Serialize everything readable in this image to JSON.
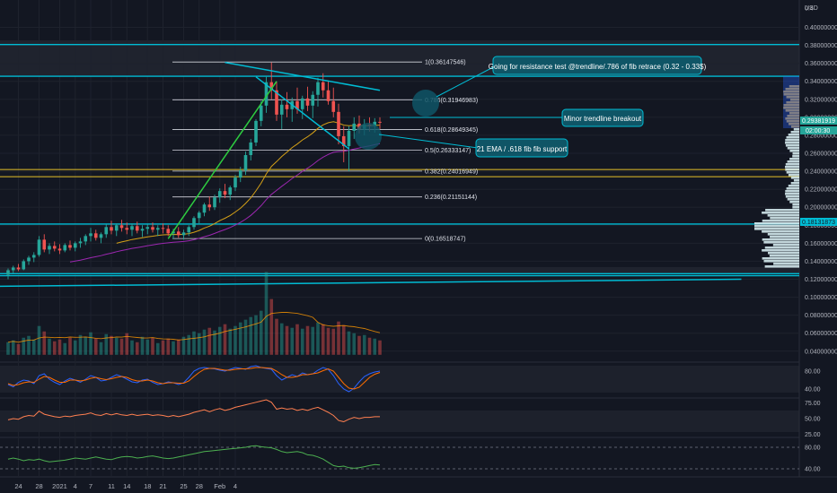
{
  "theme": {
    "background": "#131722",
    "axis_text": "#b2b5be",
    "grid": "#1e222d",
    "bull": "#26a69a",
    "bear": "#ef5350",
    "accent": "#00bcd4",
    "ema_line": "#d4a017",
    "slow_ma": "#9c27b0",
    "trend_green": "#2ecc40",
    "fib_line": "#d1d4dc",
    "fib_band": "#e6c229",
    "zone_fill": "#2a2e39"
  },
  "axis": {
    "currency_label": "USD",
    "price_ticks": [
      "0.4",
      "0.40000000",
      "0.38000000",
      "0.36000000",
      "0.34000000",
      "0.32000000",
      "0.30000000",
      "0.28000000",
      "0.26000000",
      "0.24000000",
      "0.22000000",
      "0.20000000",
      "0.18000000",
      "0.16000000",
      "0.14000000",
      "0.12000000",
      "0.10000000",
      "0.08000000",
      "0.06000000",
      "0.04000000"
    ],
    "date_ticks": [
      "24",
      "28",
      "2021",
      "4",
      "7",
      "11",
      "14",
      "18",
      "21",
      "25",
      "28",
      "Feb",
      "4"
    ]
  },
  "price_tags": {
    "last_price": "0.29381919",
    "countdown": "02:00:30",
    "level_tag": "0.18131873"
  },
  "fib_levels": [
    {
      "label": "1(0.36147546)"
    },
    {
      "label": "0.786(0.31946983)"
    },
    {
      "label": "0.618(0.28649345)"
    },
    {
      "label": "0.5(0.26333147)"
    },
    {
      "label": "0.382(0.24016949)"
    },
    {
      "label": "0.236(0.21151144)"
    },
    {
      "label": "0(0.16518747)"
    }
  ],
  "annotations": {
    "resistance": "Going for resistance test @trendline/.786 of fib retrace (0.32 - 0.33$)",
    "breakout": "Minor trendline breakout",
    "support": "21 EMA / .618 fib fib support"
  },
  "indicators": {
    "stoch_ticks": [
      "80.00",
      "40.00"
    ],
    "rsi_ticks": [
      "75.00",
      "50.00",
      "25.00"
    ],
    "third_ticks": [
      "80.00",
      "40.00"
    ]
  },
  "chart_data": {
    "type": "candlestick",
    "title": "",
    "y_scale": "price (USD)",
    "x_start": "2020-12-22",
    "price_ylim": [
      0.12,
      0.4
    ],
    "candles": [
      [
        0.125,
        0.132,
        0.12,
        0.13
      ],
      [
        0.13,
        0.135,
        0.127,
        0.133
      ],
      [
        0.133,
        0.137,
        0.129,
        0.131
      ],
      [
        0.131,
        0.142,
        0.13,
        0.14
      ],
      [
        0.14,
        0.146,
        0.136,
        0.144
      ],
      [
        0.144,
        0.15,
        0.139,
        0.147
      ],
      [
        0.147,
        0.168,
        0.145,
        0.164
      ],
      [
        0.164,
        0.17,
        0.15,
        0.153
      ],
      [
        0.153,
        0.16,
        0.148,
        0.157
      ],
      [
        0.157,
        0.162,
        0.151,
        0.154
      ],
      [
        0.154,
        0.159,
        0.148,
        0.152
      ],
      [
        0.152,
        0.16,
        0.15,
        0.158
      ],
      [
        0.158,
        0.163,
        0.152,
        0.155
      ],
      [
        0.155,
        0.162,
        0.151,
        0.16
      ],
      [
        0.16,
        0.166,
        0.155,
        0.162
      ],
      [
        0.162,
        0.17,
        0.158,
        0.168
      ],
      [
        0.168,
        0.177,
        0.162,
        0.171
      ],
      [
        0.171,
        0.175,
        0.163,
        0.166
      ],
      [
        0.166,
        0.172,
        0.16,
        0.17
      ],
      [
        0.17,
        0.181,
        0.166,
        0.178
      ],
      [
        0.178,
        0.185,
        0.17,
        0.174
      ],
      [
        0.174,
        0.182,
        0.168,
        0.18
      ],
      [
        0.18,
        0.186,
        0.173,
        0.177
      ],
      [
        0.177,
        0.183,
        0.17,
        0.175
      ],
      [
        0.175,
        0.182,
        0.168,
        0.179
      ],
      [
        0.179,
        0.184,
        0.171,
        0.174
      ],
      [
        0.174,
        0.18,
        0.167,
        0.176
      ],
      [
        0.176,
        0.181,
        0.17,
        0.178
      ],
      [
        0.178,
        0.183,
        0.172,
        0.175
      ],
      [
        0.175,
        0.18,
        0.168,
        0.177
      ],
      [
        0.177,
        0.182,
        0.171,
        0.176
      ],
      [
        0.176,
        0.18,
        0.168,
        0.171
      ],
      [
        0.171,
        0.176,
        0.165,
        0.173
      ],
      [
        0.173,
        0.178,
        0.166,
        0.169
      ],
      [
        0.169,
        0.175,
        0.164,
        0.172
      ],
      [
        0.172,
        0.18,
        0.168,
        0.178
      ],
      [
        0.178,
        0.19,
        0.175,
        0.188
      ],
      [
        0.188,
        0.196,
        0.182,
        0.194
      ],
      [
        0.194,
        0.205,
        0.19,
        0.203
      ],
      [
        0.203,
        0.212,
        0.196,
        0.2
      ],
      [
        0.2,
        0.214,
        0.197,
        0.211
      ],
      [
        0.211,
        0.221,
        0.205,
        0.218
      ],
      [
        0.218,
        0.226,
        0.21,
        0.214
      ],
      [
        0.214,
        0.224,
        0.208,
        0.222
      ],
      [
        0.222,
        0.236,
        0.218,
        0.233
      ],
      [
        0.233,
        0.245,
        0.228,
        0.241
      ],
      [
        0.241,
        0.262,
        0.236,
        0.258
      ],
      [
        0.258,
        0.276,
        0.252,
        0.272
      ],
      [
        0.272,
        0.298,
        0.268,
        0.296
      ],
      [
        0.296,
        0.318,
        0.29,
        0.313
      ],
      [
        0.313,
        0.345,
        0.305,
        0.339
      ],
      [
        0.339,
        0.361,
        0.32,
        0.33
      ],
      [
        0.33,
        0.34,
        0.296,
        0.303
      ],
      [
        0.303,
        0.32,
        0.287,
        0.314
      ],
      [
        0.314,
        0.328,
        0.3,
        0.309
      ],
      [
        0.309,
        0.322,
        0.295,
        0.318
      ],
      [
        0.318,
        0.333,
        0.304,
        0.309
      ],
      [
        0.309,
        0.324,
        0.298,
        0.321
      ],
      [
        0.321,
        0.334,
        0.307,
        0.313
      ],
      [
        0.313,
        0.329,
        0.299,
        0.325
      ],
      [
        0.325,
        0.344,
        0.312,
        0.339
      ],
      [
        0.339,
        0.349,
        0.322,
        0.33
      ],
      [
        0.33,
        0.341,
        0.314,
        0.318
      ],
      [
        0.318,
        0.333,
        0.3,
        0.306
      ],
      [
        0.306,
        0.315,
        0.27,
        0.279
      ],
      [
        0.279,
        0.29,
        0.25,
        0.268
      ],
      [
        0.268,
        0.29,
        0.24,
        0.285
      ],
      [
        0.285,
        0.3,
        0.276,
        0.293
      ],
      [
        0.293,
        0.302,
        0.282,
        0.287
      ],
      [
        0.287,
        0.298,
        0.28,
        0.292
      ],
      [
        0.292,
        0.3,
        0.284,
        0.29
      ],
      [
        0.29,
        0.299,
        0.283,
        0.295
      ],
      [
        0.295,
        0.3,
        0.287,
        0.294
      ]
    ],
    "fib_values": [
      0.36147546,
      0.31946983,
      0.28649345,
      0.26333147,
      0.24016949,
      0.21151144,
      0.16518747
    ],
    "horizontal_levels": [
      0.3809,
      0.3456,
      0.1813,
      0.1262,
      0.1239
    ],
    "fib_band": [
      0.234,
      0.242
    ],
    "ema21_from_day": 21,
    "slow_ma_from_day": 12,
    "trendlines": [
      {
        "name": "descending resistance",
        "from": [
          42,
          0.361
        ],
        "to": [
          72,
          0.33
        ]
      },
      {
        "name": "break line",
        "from": [
          48,
          0.345
        ],
        "to": [
          66,
          0.265
        ]
      },
      {
        "name": "rising support",
        "from": [
          31,
          0.165
        ],
        "to": [
          52,
          0.34
        ]
      },
      {
        "name": "lower channel",
        "from": [
          -4,
          0.112
        ],
        "to": [
          142,
          0.12
        ]
      }
    ],
    "volume_ylim": [
      0.04,
      0.13
    ],
    "volume": [
      0.05,
      0.052,
      0.048,
      0.055,
      0.057,
      0.053,
      0.068,
      0.062,
      0.054,
      0.051,
      0.053,
      0.049,
      0.055,
      0.052,
      0.058,
      0.056,
      0.061,
      0.054,
      0.05,
      0.059,
      0.057,
      0.055,
      0.054,
      0.06,
      0.052,
      0.05,
      0.056,
      0.053,
      0.055,
      0.049,
      0.052,
      0.054,
      0.051,
      0.053,
      0.056,
      0.058,
      0.062,
      0.06,
      0.064,
      0.066,
      0.063,
      0.067,
      0.07,
      0.065,
      0.068,
      0.072,
      0.075,
      0.078,
      0.08,
      0.085,
      0.128,
      0.098,
      0.076,
      0.071,
      0.068,
      0.066,
      0.07,
      0.065,
      0.068,
      0.067,
      0.072,
      0.07,
      0.066,
      0.065,
      0.073,
      0.069,
      0.062,
      0.06,
      0.057,
      0.058,
      0.055,
      0.054,
      0.052
    ],
    "stoch_ylim": [
      20,
      100
    ],
    "stoch_k": [
      50,
      45,
      55,
      60,
      58,
      52,
      70,
      74,
      62,
      55,
      50,
      58,
      64,
      60,
      55,
      62,
      70,
      66,
      58,
      60,
      66,
      72,
      68,
      62,
      56,
      54,
      60,
      62,
      55,
      50,
      52,
      56,
      54,
      50,
      54,
      66,
      80,
      86,
      88,
      86,
      85,
      82,
      80,
      84,
      88,
      86,
      84,
      90,
      92,
      88,
      86,
      84,
      70,
      60,
      66,
      72,
      68,
      76,
      72,
      74,
      82,
      88,
      84,
      70,
      52,
      40,
      34,
      42,
      56,
      68,
      74,
      78,
      80
    ],
    "stoch_d": [
      52,
      48,
      50,
      54,
      56,
      55,
      62,
      68,
      66,
      60,
      55,
      55,
      60,
      60,
      58,
      60,
      64,
      66,
      63,
      61,
      63,
      66,
      68,
      66,
      61,
      58,
      58,
      60,
      58,
      54,
      52,
      54,
      54,
      53,
      53,
      58,
      68,
      77,
      84,
      86,
      86,
      84,
      82,
      82,
      84,
      85,
      85,
      86,
      88,
      88,
      87,
      86,
      80,
      72,
      66,
      66,
      68,
      72,
      72,
      74,
      76,
      81,
      85,
      80,
      66,
      52,
      42,
      40,
      44,
      55,
      66,
      73,
      77
    ],
    "rsi_ylim": [
      20,
      80
    ],
    "rsi": [
      48,
      50,
      49,
      53,
      55,
      54,
      62,
      57,
      55,
      53,
      52,
      54,
      53,
      55,
      56,
      57,
      59,
      56,
      55,
      58,
      56,
      58,
      56,
      55,
      57,
      55,
      56,
      57,
      55,
      56,
      55,
      53,
      55,
      53,
      55,
      57,
      60,
      62,
      64,
      61,
      64,
      66,
      63,
      65,
      68,
      70,
      72,
      74,
      76,
      78,
      80,
      76,
      65,
      67,
      65,
      66,
      63,
      65,
      63,
      66,
      68,
      64,
      60,
      55,
      47,
      45,
      49,
      52,
      50,
      52,
      52,
      53,
      53
    ],
    "third_ylim": [
      25,
      95
    ],
    "third": [
      58,
      60,
      58,
      55,
      57,
      56,
      58,
      55,
      53,
      54,
      55,
      56,
      58,
      60,
      59,
      58,
      60,
      62,
      60,
      58,
      57,
      60,
      62,
      63,
      62,
      60,
      61,
      63,
      64,
      62,
      60,
      59,
      60,
      62,
      64,
      66,
      68,
      70,
      72,
      73,
      74,
      75,
      76,
      77,
      78,
      79,
      80,
      82,
      83,
      81,
      80,
      79,
      76,
      72,
      70,
      71,
      72,
      70,
      66,
      65,
      62,
      58,
      52,
      46,
      44,
      45,
      42,
      41,
      42,
      44,
      46,
      48,
      47
    ]
  }
}
